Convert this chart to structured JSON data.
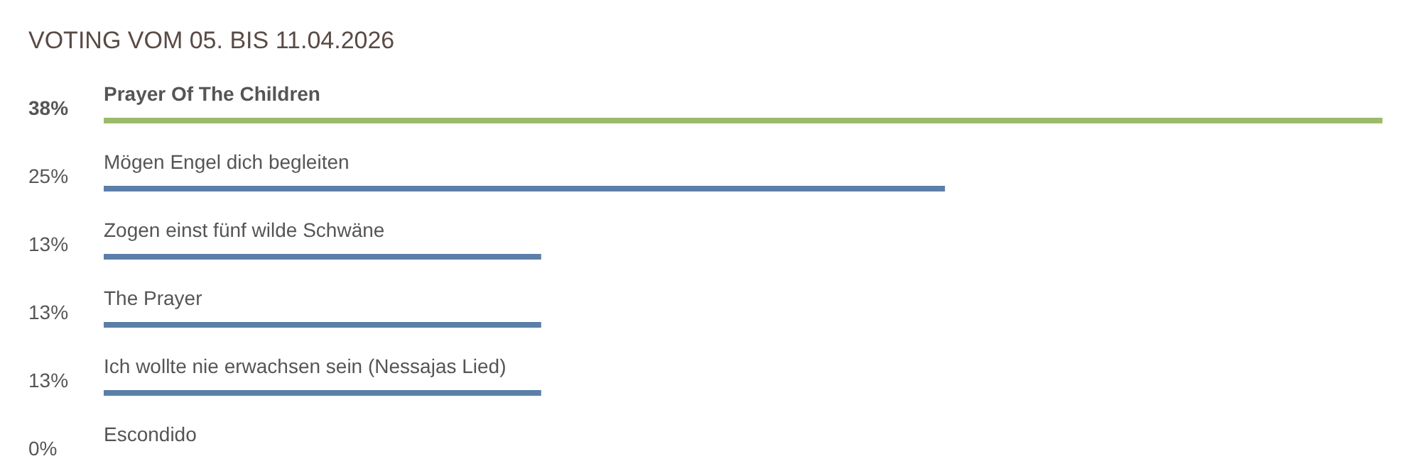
{
  "chart_data": {
    "type": "bar",
    "orientation": "horizontal",
    "title": "VOTING VOM 05. BIS 11.04.2026",
    "categories": [
      "Prayer Of The Children",
      "Mögen Engel dich begleiten",
      "Zogen einst fünf wilde Schwäne",
      "The Prayer",
      "Ich wollte nie erwachsen sein (Nessajas Lied)",
      "Escondido"
    ],
    "values": [
      38,
      25,
      13,
      13,
      13,
      0
    ],
    "colors": [
      "#9bbb6b",
      "#5b7fa8",
      "#5b7fa8",
      "#5b7fa8",
      "#5b7fa8",
      "#5b7fa8"
    ],
    "value_labels": [
      "38%",
      "25%",
      "13%",
      "13%",
      "13%",
      "0%"
    ],
    "grid": false,
    "legend": false
  }
}
